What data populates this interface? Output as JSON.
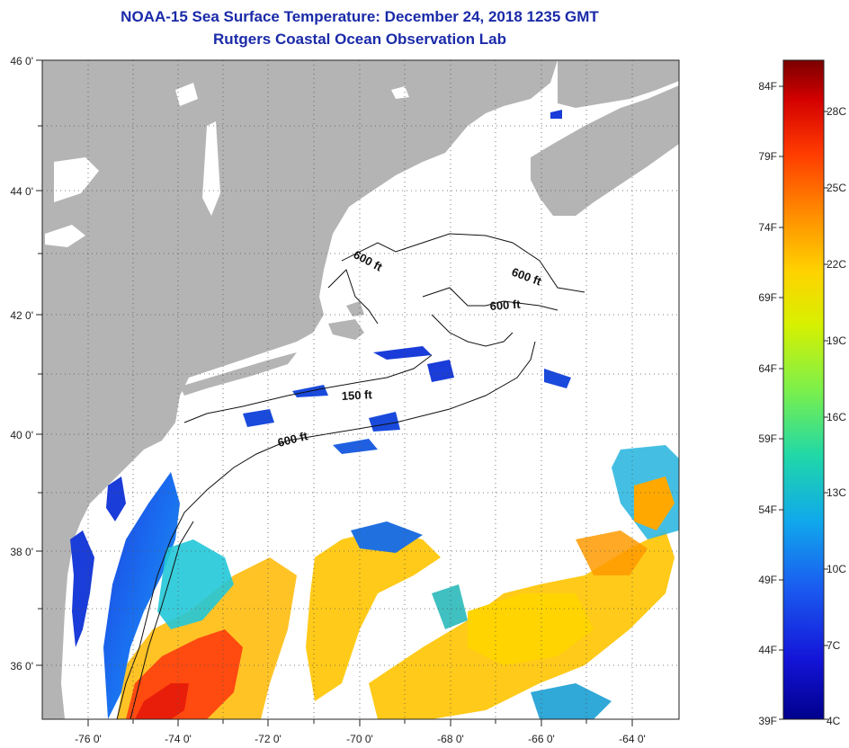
{
  "title": {
    "line1": "NOAA-15 Sea Surface Temperature:  December 24, 2018 1235 GMT",
    "line2": "Rutgers Coastal Ocean Observation Lab"
  },
  "map": {
    "lon_labels": [
      "-76 0'",
      "-74 0'",
      "-72 0'",
      "-70 0'",
      "-68 0'",
      "-66 0'",
      "-64 0'"
    ],
    "lat_labels": [
      "46 0'",
      "44 0'",
      "42 0'",
      "40 0'",
      "38 0'",
      "36 0'"
    ],
    "contour_labels": [
      "600 ft",
      "600 ft",
      "600 ft",
      "150 ft",
      "600 ft"
    ],
    "land_color": "#b4b4b4",
    "water_color": "#ffffff",
    "grid": "dotted"
  },
  "colorbar": {
    "fahrenheit": [
      "84F",
      "79F",
      "74F",
      "69F",
      "64F",
      "59F",
      "54F",
      "49F",
      "44F",
      "39F"
    ],
    "celsius": [
      "28C",
      "25C",
      "22C",
      "19C",
      "16C",
      "13C",
      "10C",
      "7C",
      "4C"
    ],
    "colors": [
      "#7a0000",
      "#d40000",
      "#ff3a00",
      "#ff8a00",
      "#ffd200",
      "#d8f000",
      "#7cf04a",
      "#20d8a8",
      "#10a8ec",
      "#1a5cf0",
      "#1414d8",
      "#00008c"
    ]
  }
}
